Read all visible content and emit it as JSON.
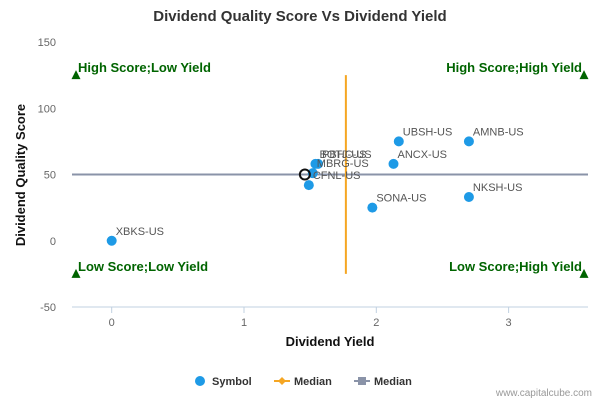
{
  "chart_data": {
    "type": "scatter",
    "title": "Dividend Quality Score Vs Dividend Yield",
    "xlabel": "Dividend Yield",
    "ylabel": "Dividend Quality Score",
    "xlim": [
      -0.3,
      3.6
    ],
    "ylim": [
      -50,
      150
    ],
    "x_ticks": [
      0,
      1,
      2,
      3
    ],
    "y_ticks": [
      -50,
      0,
      50,
      100,
      150
    ],
    "grid": false,
    "points": [
      {
        "label": "XBKS-US",
        "x": 0.0,
        "y": 0
      },
      {
        "label": "BOTJ-US",
        "x": 1.54,
        "y": 58
      },
      {
        "label": "PBHC-US",
        "x": 1.56,
        "y": 58
      },
      {
        "label": "MBRG-US",
        "x": 1.52,
        "y": 51
      },
      {
        "label": "CFNL-US",
        "x": 1.49,
        "y": 42
      },
      {
        "label": "UBSH-US",
        "x": 2.17,
        "y": 75
      },
      {
        "label": "AMNB-US",
        "x": 2.7,
        "y": 75
      },
      {
        "label": "ANCX-US",
        "x": 2.13,
        "y": 58
      },
      {
        "label": "SONA-US",
        "x": 1.97,
        "y": 25
      },
      {
        "label": "NKSH-US",
        "x": 2.7,
        "y": 33
      }
    ],
    "highlight_point": {
      "x": 1.46,
      "y": 50
    },
    "median_x": 1.77,
    "median_y": 50,
    "median_x_range": [
      -25,
      125
    ],
    "quadrant_labels": [
      {
        "text": "High Score;Low Yield",
        "position": "top-left"
      },
      {
        "text": "High Score;High Yield",
        "position": "top-right"
      },
      {
        "text": "Low Score;Low Yield",
        "position": "bottom-left"
      },
      {
        "text": "Low Score;High Yield",
        "position": "bottom-right"
      }
    ],
    "quadrant_markers_y": [
      125,
      -25
    ],
    "legend": {
      "placement": "bottom",
      "entries": [
        {
          "name": "Symbol",
          "marker": "circle",
          "color": "#1e9ae6"
        },
        {
          "name": "Median",
          "marker": "diamond",
          "color": "#f5a623"
        },
        {
          "name": "Median",
          "marker": "square",
          "color": "#8a93a8"
        }
      ]
    },
    "colors": {
      "points": "#1e9ae6",
      "median_vertical": "#f5a623",
      "median_horizontal": "#8a93a8",
      "quadrant_text": "#006400",
      "quadrant_marker": "#006400"
    },
    "credit": "www.capitalcube.com"
  }
}
